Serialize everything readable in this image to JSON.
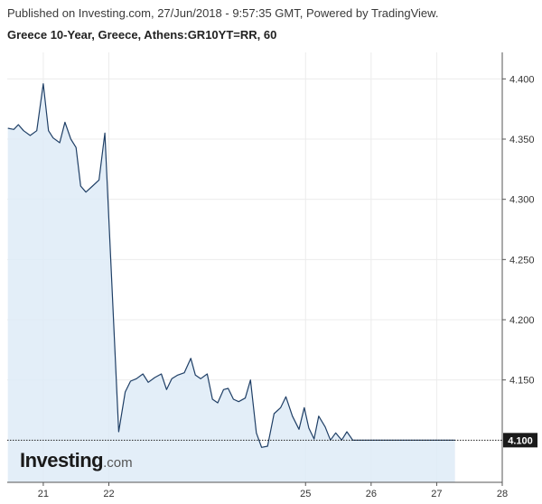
{
  "header": {
    "published": "Published on Investing.com, 27/Jun/2018 - 9:57:35 GMT, Powered by TradingView.",
    "title": "Greece 10-Year, Greece, Athens:GR10YT=RR, 60"
  },
  "logo": {
    "main": "Investing",
    "dotcom": ".com"
  },
  "colors": {
    "line": "#1f3f66",
    "area": "#deebf7",
    "grid": "#ececec",
    "axis": "#555555",
    "price_label_bg": "#1a1a1a"
  },
  "chart_data": {
    "type": "area",
    "ylim": [
      4.065,
      4.422
    ],
    "xlim": [
      20.45,
      28
    ],
    "y_ticks": [
      {
        "value": 4.15,
        "label": "4.150"
      },
      {
        "value": 4.2,
        "label": "4.200"
      },
      {
        "value": 4.25,
        "label": "4.250"
      },
      {
        "value": 4.3,
        "label": "4.300"
      },
      {
        "value": 4.35,
        "label": "4.350"
      },
      {
        "value": 4.4,
        "label": "4.400"
      }
    ],
    "x_ticks": [
      {
        "value": 21,
        "label": "21"
      },
      {
        "value": 22,
        "label": "22"
      },
      {
        "value": 25,
        "label": "25"
      },
      {
        "value": 26,
        "label": "26"
      },
      {
        "value": 27,
        "label": "27"
      },
      {
        "value": 28,
        "label": "28"
      }
    ],
    "current_price": {
      "value": 4.1,
      "label": "4.100"
    },
    "grid": true,
    "series": [
      {
        "x": [
          20.46,
          20.55,
          20.62,
          20.7,
          20.8,
          20.9,
          21.0,
          21.08,
          21.15,
          21.25,
          21.33,
          21.42,
          21.5,
          21.57,
          21.65,
          21.75,
          21.85,
          21.94,
          22.15,
          22.25,
          22.33,
          22.42,
          22.52,
          22.6,
          22.7,
          22.8,
          22.88,
          22.96,
          23.05,
          23.15,
          23.25,
          23.32,
          23.4,
          23.5,
          23.58,
          23.66,
          23.75,
          23.82,
          23.9,
          23.98,
          24.08,
          24.16,
          24.25,
          24.33,
          24.42,
          24.52,
          24.62,
          24.7,
          24.8,
          24.9,
          24.98,
          25.05,
          25.13,
          25.2,
          25.3,
          25.38,
          25.46,
          25.55,
          25.63,
          25.72,
          25.8,
          25.88,
          25.96,
          26.05,
          26.13,
          26.22,
          26.3,
          26.38,
          26.46,
          26.55,
          26.63,
          26.72,
          26.8,
          26.88,
          26.96,
          27.04,
          27.12,
          27.2,
          27.28
        ],
        "y": [
          4.359,
          4.358,
          4.362,
          4.357,
          4.353,
          4.357,
          4.396,
          4.357,
          4.351,
          4.347,
          4.364,
          4.35,
          4.343,
          4.311,
          4.306,
          4.311,
          4.316,
          4.355,
          4.107,
          4.14,
          4.149,
          4.151,
          4.155,
          4.148,
          4.152,
          4.155,
          4.142,
          4.151,
          4.154,
          4.156,
          4.168,
          4.154,
          4.151,
          4.155,
          4.134,
          4.131,
          4.142,
          4.143,
          4.134,
          4.132,
          4.135,
          4.15,
          4.106,
          4.094,
          4.095,
          4.122,
          4.127,
          4.136,
          4.12,
          4.109,
          4.127,
          4.11,
          4.101,
          4.12,
          4.111,
          4.1,
          4.106,
          4.1,
          4.107,
          4.1,
          4.1,
          4.1,
          4.1,
          4.1,
          4.1,
          4.1,
          4.1,
          4.1,
          4.1,
          4.1,
          4.1,
          4.1,
          4.1,
          4.1,
          4.1,
          4.1,
          4.1,
          4.1,
          4.1
        ]
      }
    ]
  }
}
